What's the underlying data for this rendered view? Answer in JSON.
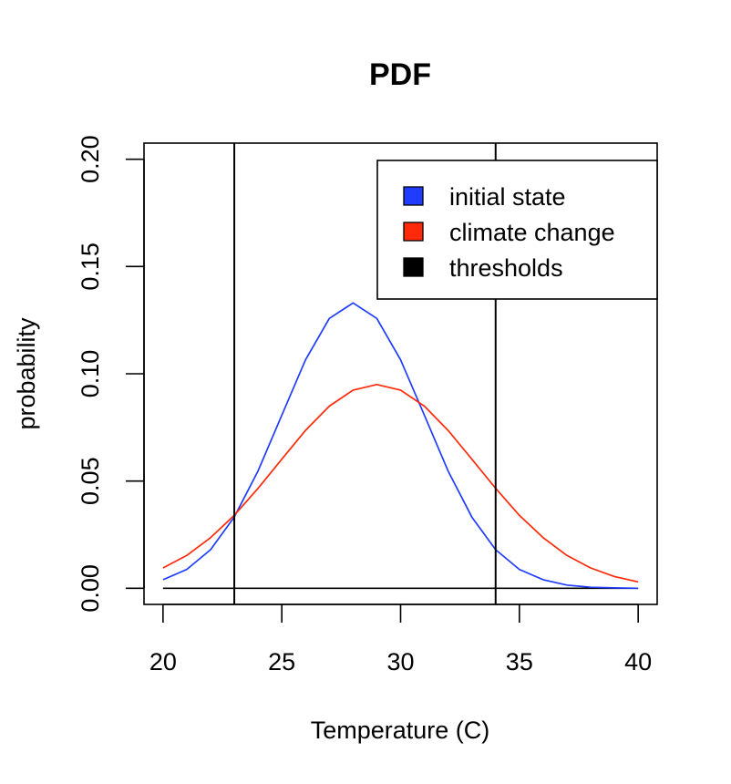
{
  "chart_data": {
    "type": "line",
    "title": "PDF",
    "xlabel": "Temperature (C)",
    "ylabel": "probability",
    "xlim": [
      19.2,
      40.8
    ],
    "ylim": [
      -0.0075,
      0.2075
    ],
    "x_ticks": [
      20,
      25,
      30,
      35,
      40
    ],
    "y_ticks": [
      0.0,
      0.05,
      0.1,
      0.15,
      0.2
    ],
    "x_tick_labels": [
      "20",
      "25",
      "30",
      "35",
      "40"
    ],
    "y_tick_labels": [
      "0.00",
      "0.05",
      "0.10",
      "0.15",
      "0.20"
    ],
    "grid": false,
    "legend_position": "top-right",
    "x": [
      20,
      21,
      22,
      23,
      24,
      25,
      26,
      27,
      28,
      29,
      30,
      31,
      32,
      33,
      34,
      35,
      36,
      37,
      38,
      39,
      40
    ],
    "series": [
      {
        "name": "initial state",
        "color": "#1f3cff",
        "values": [
          0.004,
          0.0088,
          0.018,
          0.0332,
          0.0547,
          0.0807,
          0.1065,
          0.1258,
          0.133,
          0.1258,
          0.1065,
          0.0807,
          0.0547,
          0.0332,
          0.018,
          0.0088,
          0.004,
          0.0015,
          0.0005,
          0.0002,
          0.0
        ]
      },
      {
        "name": "climate change",
        "color": "#ff2a0a",
        "values": [
          0.0095,
          0.0153,
          0.0236,
          0.034,
          0.0466,
          0.0602,
          0.0736,
          0.0849,
          0.0924,
          0.095,
          0.0924,
          0.0849,
          0.0736,
          0.0602,
          0.0466,
          0.034,
          0.0236,
          0.0153,
          0.0095,
          0.0055,
          0.003
        ]
      }
    ],
    "baseline": {
      "y": 0.0,
      "x_start": 20,
      "x_end": 40,
      "color": "#000000"
    },
    "thresholds": {
      "name": "thresholds",
      "color": "#000000",
      "values": [
        23,
        34
      ]
    },
    "legend": [
      {
        "label": "initial state",
        "color": "#1f3cff"
      },
      {
        "label": "climate change",
        "color": "#ff2a0a"
      },
      {
        "label": "thresholds",
        "color": "#000000"
      }
    ]
  }
}
